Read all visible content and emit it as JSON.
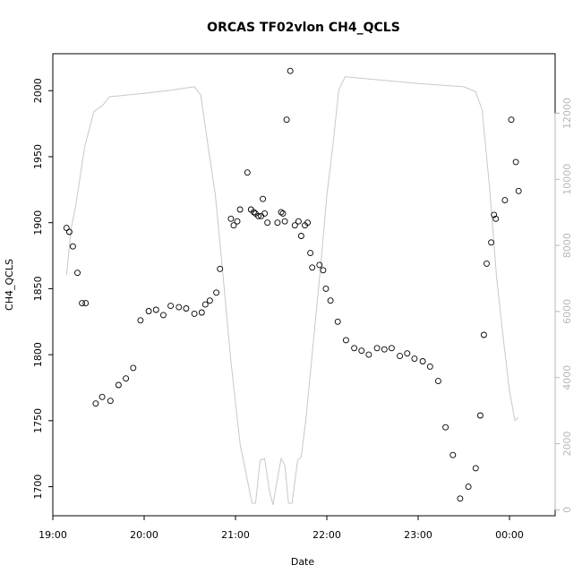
{
  "chart_data": {
    "type": "scatter",
    "title": "ORCAS TF02vlon CH4_QCLS",
    "xlabel": "Date",
    "ylabel": "CH4_QCLS",
    "xlim": [
      19.0,
      24.5
    ],
    "ylim": [
      1678,
      2028
    ],
    "y2lim": [
      -180,
      13800
    ],
    "x_ticks": [
      {
        "v": 19.0,
        "label": "19:00"
      },
      {
        "v": 20.0,
        "label": "20:00"
      },
      {
        "v": 21.0,
        "label": "21:00"
      },
      {
        "v": 22.0,
        "label": "22:00"
      },
      {
        "v": 23.0,
        "label": "23:00"
      },
      {
        "v": 24.0,
        "label": "00:00"
      }
    ],
    "y_ticks": [
      {
        "v": 1700,
        "label": "1700"
      },
      {
        "v": 1750,
        "label": "1750"
      },
      {
        "v": 1800,
        "label": "1800"
      },
      {
        "v": 1850,
        "label": "1850"
      },
      {
        "v": 1900,
        "label": "1900"
      },
      {
        "v": 1950,
        "label": "1950"
      },
      {
        "v": 2000,
        "label": "2000"
      }
    ],
    "y2_ticks": [
      {
        "v": 0,
        "label": "0"
      },
      {
        "v": 2000,
        "label": "2000"
      },
      {
        "v": 4000,
        "label": "4000"
      },
      {
        "v": 6000,
        "label": "6000"
      },
      {
        "v": 8000,
        "label": "8000"
      },
      {
        "v": 10000,
        "label": "10000"
      },
      {
        "v": 12000,
        "label": "12000"
      }
    ],
    "colors": {
      "points": "#000000",
      "secondary_line": "#c8c8c8",
      "secondary_axis": "#b8b8b8"
    },
    "series": [
      {
        "type": "scatter",
        "axis": "left",
        "points": [
          [
            19.15,
            1896
          ],
          [
            19.18,
            1893
          ],
          [
            19.22,
            1882
          ],
          [
            19.27,
            1862
          ],
          [
            19.32,
            1839
          ],
          [
            19.36,
            1839
          ],
          [
            19.47,
            1763
          ],
          [
            19.54,
            1768
          ],
          [
            19.63,
            1765
          ],
          [
            19.72,
            1777
          ],
          [
            19.8,
            1782
          ],
          [
            19.88,
            1790
          ],
          [
            19.96,
            1826
          ],
          [
            20.05,
            1833
          ],
          [
            20.13,
            1834
          ],
          [
            20.21,
            1830
          ],
          [
            20.29,
            1837
          ],
          [
            20.38,
            1836
          ],
          [
            20.46,
            1835
          ],
          [
            20.55,
            1831
          ],
          [
            20.63,
            1832
          ],
          [
            20.67,
            1838
          ],
          [
            20.72,
            1841
          ],
          [
            20.79,
            1847
          ],
          [
            20.83,
            1865
          ],
          [
            20.95,
            1903
          ],
          [
            20.98,
            1898
          ],
          [
            21.02,
            1901
          ],
          [
            21.05,
            1910
          ],
          [
            21.13,
            1938
          ],
          [
            21.17,
            1910
          ],
          [
            21.2,
            1908
          ],
          [
            21.22,
            1907
          ],
          [
            21.25,
            1905
          ],
          [
            21.28,
            1905
          ],
          [
            21.3,
            1918
          ],
          [
            21.32,
            1907
          ],
          [
            21.35,
            1900
          ],
          [
            21.46,
            1900
          ],
          [
            21.5,
            1908
          ],
          [
            21.52,
            1907
          ],
          [
            21.54,
            1901
          ],
          [
            21.56,
            1978
          ],
          [
            21.6,
            2015
          ],
          [
            21.65,
            1898
          ],
          [
            21.69,
            1901
          ],
          [
            21.72,
            1890
          ],
          [
            21.76,
            1898
          ],
          [
            21.79,
            1900
          ],
          [
            21.82,
            1877
          ],
          [
            21.84,
            1866
          ],
          [
            21.92,
            1868
          ],
          [
            21.96,
            1864
          ],
          [
            21.99,
            1850
          ],
          [
            22.04,
            1841
          ],
          [
            22.12,
            1825
          ],
          [
            22.21,
            1811
          ],
          [
            22.3,
            1805
          ],
          [
            22.38,
            1803
          ],
          [
            22.46,
            1800
          ],
          [
            22.55,
            1805
          ],
          [
            22.63,
            1804
          ],
          [
            22.71,
            1805
          ],
          [
            22.8,
            1799
          ],
          [
            22.88,
            1801
          ],
          [
            22.96,
            1797
          ],
          [
            23.05,
            1795
          ],
          [
            23.13,
            1791
          ],
          [
            23.22,
            1780
          ],
          [
            23.3,
            1745
          ],
          [
            23.38,
            1724
          ],
          [
            23.46,
            1691
          ],
          [
            23.55,
            1700
          ],
          [
            23.63,
            1714
          ],
          [
            23.68,
            1754
          ],
          [
            23.72,
            1815
          ],
          [
            23.75,
            1869
          ],
          [
            23.8,
            1885
          ],
          [
            23.83,
            1906
          ],
          [
            23.85,
            1903
          ],
          [
            23.95,
            1917
          ],
          [
            24.02,
            1978
          ],
          [
            24.07,
            1946
          ],
          [
            24.1,
            1924
          ]
        ]
      },
      {
        "type": "line",
        "axis": "right",
        "points": [
          [
            19.15,
            7100
          ],
          [
            19.2,
            8500
          ],
          [
            19.25,
            9200
          ],
          [
            19.3,
            10100
          ],
          [
            19.35,
            11000
          ],
          [
            19.45,
            12050
          ],
          [
            19.55,
            12250
          ],
          [
            19.62,
            12500
          ],
          [
            19.7,
            12520
          ],
          [
            20.0,
            12600
          ],
          [
            20.3,
            12700
          ],
          [
            20.55,
            12800
          ],
          [
            20.62,
            12550
          ],
          [
            20.7,
            11000
          ],
          [
            20.78,
            9500
          ],
          [
            20.86,
            7200
          ],
          [
            20.95,
            4500
          ],
          [
            21.05,
            2000
          ],
          [
            21.13,
            900
          ],
          [
            21.18,
            200
          ],
          [
            21.22,
            200
          ],
          [
            21.27,
            1500
          ],
          [
            21.32,
            1550
          ],
          [
            21.37,
            600
          ],
          [
            21.41,
            150
          ],
          [
            21.45,
            800
          ],
          [
            21.5,
            1550
          ],
          [
            21.54,
            1350
          ],
          [
            21.58,
            200
          ],
          [
            21.62,
            200
          ],
          [
            21.68,
            1500
          ],
          [
            21.72,
            1600
          ],
          [
            21.77,
            2700
          ],
          [
            21.85,
            5000
          ],
          [
            21.93,
            7300
          ],
          [
            22.0,
            9500
          ],
          [
            22.07,
            11100
          ],
          [
            22.13,
            12700
          ],
          [
            22.2,
            13100
          ],
          [
            23.0,
            12900
          ],
          [
            23.5,
            12800
          ],
          [
            23.63,
            12650
          ],
          [
            23.7,
            12100
          ],
          [
            23.78,
            9800
          ],
          [
            23.86,
            7000
          ],
          [
            23.94,
            5000
          ],
          [
            24.0,
            3600
          ],
          [
            24.06,
            2700
          ],
          [
            24.1,
            2800
          ]
        ]
      }
    ]
  }
}
